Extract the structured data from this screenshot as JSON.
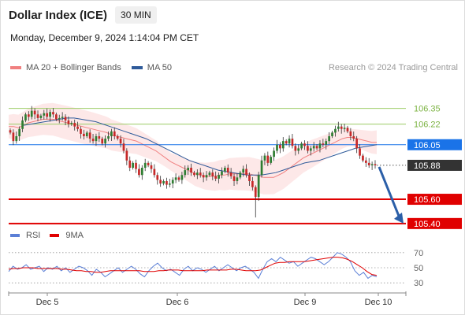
{
  "header": {
    "title": "Dollar Index (ICE)",
    "timeframe": "30 MIN"
  },
  "datetime": "Monday, December 9, 2024 1:14:04 PM CET",
  "legend": {
    "bollinger": {
      "label": "MA 20 + Bollinger Bands",
      "color": "#f08080"
    },
    "ma50": {
      "label": "MA 50",
      "color": "#2f5b9a"
    }
  },
  "credit": "Research © 2024 Trading Central",
  "rsi_legend": {
    "rsi": {
      "label": "RSI",
      "color": "#5b7fd6"
    },
    "ma9": {
      "label": "9MA",
      "color": "#e00000"
    }
  },
  "chart_data": [
    {
      "type": "candlestick",
      "y_range": [
        105.36,
        106.62
      ],
      "x_ticks": [
        "Dec 5",
        "Dec 6",
        "Dec 9",
        "Dec 10"
      ],
      "levels": [
        {
          "value": 106.35,
          "label": "106.35",
          "style": "resistance",
          "color": "#9ccc65"
        },
        {
          "value": 106.22,
          "label": "106.22",
          "style": "resistance",
          "color": "#9ccc65"
        },
        {
          "value": 106.05,
          "label": "106.05",
          "style": "pivot",
          "color": "#1a73e8"
        },
        {
          "value": 105.88,
          "label": "105.88",
          "style": "last-price",
          "color": "#333333"
        },
        {
          "value": 105.6,
          "label": "105.60",
          "style": "support",
          "color": "#e00000"
        },
        {
          "value": 105.4,
          "label": "105.40",
          "style": "support",
          "color": "#e00000"
        }
      ],
      "closes": [
        106.15,
        106.08,
        106.12,
        106.18,
        106.25,
        106.3,
        106.28,
        106.33,
        106.3,
        106.27,
        106.29,
        106.31,
        106.28,
        106.32,
        106.3,
        106.26,
        106.27,
        106.28,
        106.25,
        106.22,
        106.23,
        106.2,
        106.18,
        106.14,
        106.12,
        106.15,
        106.1,
        106.08,
        106.12,
        106.1,
        106.06,
        106.1,
        106.12,
        106.16,
        106.12,
        106.1,
        106.06,
        106.0,
        105.92,
        105.86,
        105.9,
        105.85,
        105.8,
        105.86,
        105.9,
        105.88,
        105.85,
        105.8,
        105.76,
        105.73,
        105.75,
        105.72,
        105.73,
        105.76,
        105.78,
        105.76,
        105.8,
        105.84,
        105.86,
        105.82,
        105.8,
        105.82,
        105.8,
        105.78,
        105.8,
        105.82,
        105.79,
        105.77,
        105.8,
        105.83,
        105.86,
        105.82,
        105.79,
        105.75,
        105.78,
        105.82,
        105.85,
        105.8,
        105.75,
        105.7,
        105.62,
        105.8,
        105.92,
        105.96,
        105.9,
        105.95,
        106.0,
        106.05,
        106.02,
        106.08,
        106.06,
        106.1,
        106.04,
        106.0,
        106.02,
        106.06,
        106.04,
        106.0,
        106.02,
        106.04,
        106.02,
        106.06,
        106.05,
        106.08,
        106.12,
        106.15,
        106.18,
        106.2,
        106.18,
        106.19,
        106.16,
        106.12,
        106.1,
        106.02,
        105.96,
        105.92,
        105.9,
        105.88,
        105.89,
        105.88
      ],
      "ma20": [
        106.2,
        106.2,
        106.19,
        106.21,
        106.23,
        106.24,
        106.25,
        106.26,
        106.26,
        106.26,
        106.25,
        106.24,
        106.23,
        106.22,
        106.21,
        106.2,
        106.19,
        106.18,
        106.17,
        106.16,
        106.15,
        106.13,
        106.12,
        106.11,
        106.1,
        106.09,
        106.08,
        106.06,
        106.04,
        106.02,
        106.0,
        105.97,
        105.94,
        105.91,
        105.89,
        105.87,
        105.85,
        105.83,
        105.81,
        105.8,
        105.79,
        105.79,
        105.79,
        105.8,
        105.8,
        105.81,
        105.81,
        105.81,
        105.81,
        105.81,
        105.8,
        105.79,
        105.78,
        105.78,
        105.78,
        105.8,
        105.82,
        105.85,
        105.88,
        105.91,
        105.94,
        105.96,
        105.98,
        106.0,
        106.02,
        106.04,
        106.06,
        106.08,
        106.1,
        106.11,
        106.11,
        106.1,
        106.09,
        106.08,
        106.07,
        106.07
      ],
      "ma50": [
        106.21,
        106.22,
        106.23,
        106.24,
        106.25,
        106.26,
        106.27,
        106.27,
        106.26,
        106.25,
        106.24,
        106.22,
        106.2,
        106.18,
        106.16,
        106.14,
        106.12,
        106.1,
        106.07,
        106.04,
        106.01,
        105.98,
        105.95,
        105.92,
        105.9,
        105.88,
        105.86,
        105.84,
        105.83,
        105.82,
        105.81,
        105.8,
        105.8,
        105.8,
        105.81,
        105.82,
        105.84,
        105.86,
        105.88,
        105.9,
        105.91,
        105.92,
        105.94,
        105.96,
        105.98,
        106.0,
        106.02,
        106.03,
        106.04,
        106.05
      ]
    },
    {
      "type": "line",
      "name": "RSI",
      "y_ticks": [
        30,
        50,
        70
      ],
      "rsi": [
        45,
        52,
        48,
        50,
        54,
        48,
        50,
        52,
        45,
        50,
        48,
        52,
        46,
        50,
        44,
        48,
        52,
        50,
        46,
        40,
        48,
        44,
        38,
        42,
        46,
        50,
        44,
        48,
        52,
        48,
        42,
        38,
        46,
        52,
        56,
        50,
        46,
        48,
        44,
        40,
        48,
        52,
        46,
        50,
        48,
        44,
        48,
        52,
        46,
        50,
        54,
        50,
        46,
        50,
        52,
        48,
        44,
        36,
        48,
        58,
        62,
        58,
        64,
        60,
        56,
        58,
        52,
        56,
        60,
        64,
        62,
        58,
        54,
        58,
        64,
        70,
        68,
        64,
        58,
        46,
        40,
        44,
        36,
        40,
        38
      ],
      "ma9": [
        48,
        49,
        49,
        50,
        50,
        50,
        49,
        49,
        49,
        49,
        49,
        48,
        48,
        47,
        46,
        46,
        45,
        45,
        44,
        44,
        45,
        46,
        46,
        46,
        46,
        46,
        46,
        46,
        45,
        45,
        45,
        46,
        46,
        47,
        47,
        47,
        46,
        46,
        46,
        46,
        46,
        47,
        47,
        47,
        47,
        47,
        48,
        48,
        47,
        46,
        46,
        46,
        47,
        50,
        53,
        56,
        57,
        57,
        58,
        58,
        58,
        58,
        59,
        60,
        61,
        62,
        63,
        64,
        64,
        63,
        61,
        58,
        54,
        50,
        45,
        41,
        40
      ]
    }
  ]
}
